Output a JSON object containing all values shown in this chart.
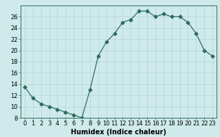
{
  "x": [
    0,
    1,
    2,
    3,
    4,
    5,
    6,
    7,
    8,
    9,
    10,
    11,
    12,
    13,
    14,
    15,
    16,
    17,
    18,
    19,
    20,
    21,
    22,
    23
  ],
  "y": [
    13.5,
    11.5,
    10.5,
    10.0,
    9.5,
    9.0,
    8.5,
    8.0,
    13.0,
    19.0,
    21.5,
    23.0,
    25.0,
    25.5,
    27.0,
    27.0,
    26.0,
    26.5,
    26.0,
    26.0,
    25.0,
    23.0,
    20.0,
    19.0
  ],
  "line_color": "#2e6b5e",
  "marker": "D",
  "marker_size": 2.5,
  "bg_color": "#ceeaea",
  "grid_color": "#b8d8d8",
  "xlabel": "Humidex (Indice chaleur)",
  "xlim": [
    -0.5,
    23.5
  ],
  "ylim": [
    8,
    28
  ],
  "yticks": [
    8,
    10,
    12,
    14,
    16,
    18,
    20,
    22,
    24,
    26
  ],
  "xticks": [
    0,
    1,
    2,
    3,
    4,
    5,
    6,
    7,
    8,
    9,
    10,
    11,
    12,
    13,
    14,
    15,
    16,
    17,
    18,
    19,
    20,
    21,
    22,
    23
  ],
  "tick_fontsize": 6,
  "xlabel_fontsize": 7
}
